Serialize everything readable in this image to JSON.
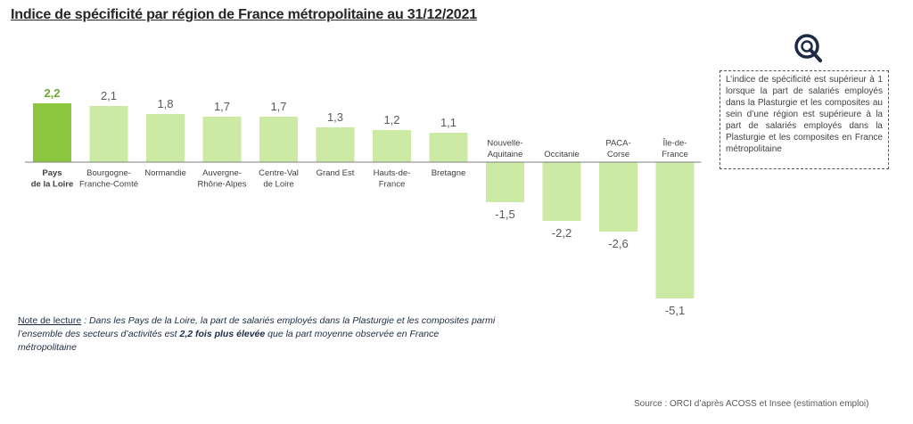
{
  "title": "Indice de spécificité par région de France métropolitaine au 31/12/2021",
  "callout": {
    "text": "L’indice de spécificité est supérieur à 1 lorsque la part de salariés employés dans la Plasturgie et les composites au sein d’une région est supérieure à la part de salariés employés dans la Plasturgie et les composites en France métropolitaine"
  },
  "note": {
    "label": "Note de lecture",
    "text_1": " : Dans les Pays de la Loire, la part de salariés employés dans la Plasturgie et les composites parmi l’ensemble des secteurs d’activités est ",
    "bold": "2,2 fois plus élevée",
    "text_2": " que la part moyenne observée en France métropolitaine"
  },
  "source": "Source : ORCI d’après ACOSS et Insee (estimation emploi)",
  "icons": {
    "callout": "magnifier-icon"
  },
  "colors": {
    "highlight": "#8cc63f",
    "bar": "#cdeaa5",
    "highlight_label": "#6aa834"
  },
  "chart_data": {
    "type": "bar",
    "title": "Indice de spécificité par région de France métropolitaine au 31/12/2021",
    "categories": [
      [
        "Pays",
        "de la Loire"
      ],
      [
        "Bourgogne-",
        "Franche-Comté"
      ],
      [
        "Normandie"
      ],
      [
        "Auvergne-",
        "Rhône-Alpes"
      ],
      [
        "Centre-Val",
        "de Loire"
      ],
      [
        "Grand Est"
      ],
      [
        "Hauts-de-",
        "France"
      ],
      [
        "Bretagne"
      ],
      [
        "Nouvelle-",
        "Aquitaine"
      ],
      [
        "Occitanie"
      ],
      [
        "PACA-",
        "Corse"
      ],
      [
        "Île-de-",
        "France"
      ]
    ],
    "values": [
      2.2,
      2.1,
      1.8,
      1.7,
      1.7,
      1.3,
      1.2,
      1.1,
      -1.5,
      -2.2,
      -2.6,
      -5.1
    ],
    "value_labels": [
      "2,2",
      "2,1",
      "1,8",
      "1,7",
      "1,7",
      "1,3",
      "1,2",
      "1,1",
      "-1,5",
      "-2,2",
      "-2,6",
      "-5,1"
    ],
    "highlight_index": 0,
    "xlabel": "",
    "ylabel": "",
    "grid": false,
    "legend": "none"
  }
}
